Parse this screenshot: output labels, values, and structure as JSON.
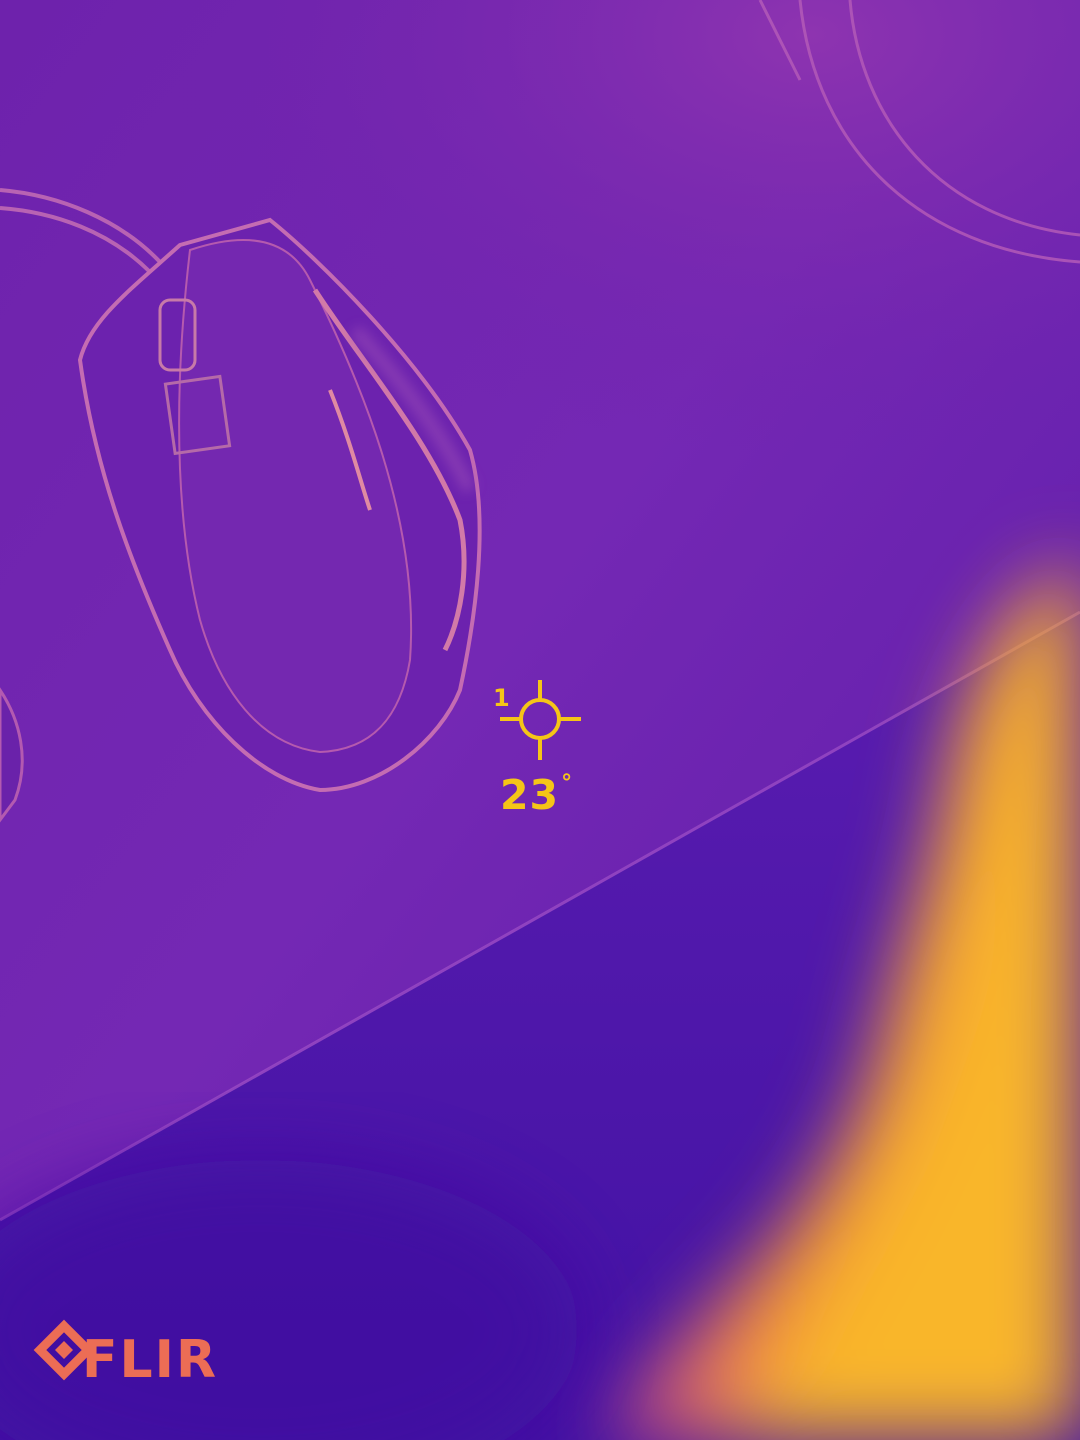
{
  "measurement": {
    "spot_id": "1",
    "temperature": "23",
    "unit": "°"
  },
  "brand": {
    "name": "FLIR"
  },
  "colors": {
    "palette": "iron",
    "overlay": "#f5c517",
    "logo": "#ec6d55",
    "cold": "#4a15a6",
    "mid": "#7a28b8",
    "warm": "#f5a623"
  },
  "icons": {
    "crosshair": "spot-meter-crosshair-icon",
    "logo": "flir-diamond-logo-icon"
  }
}
